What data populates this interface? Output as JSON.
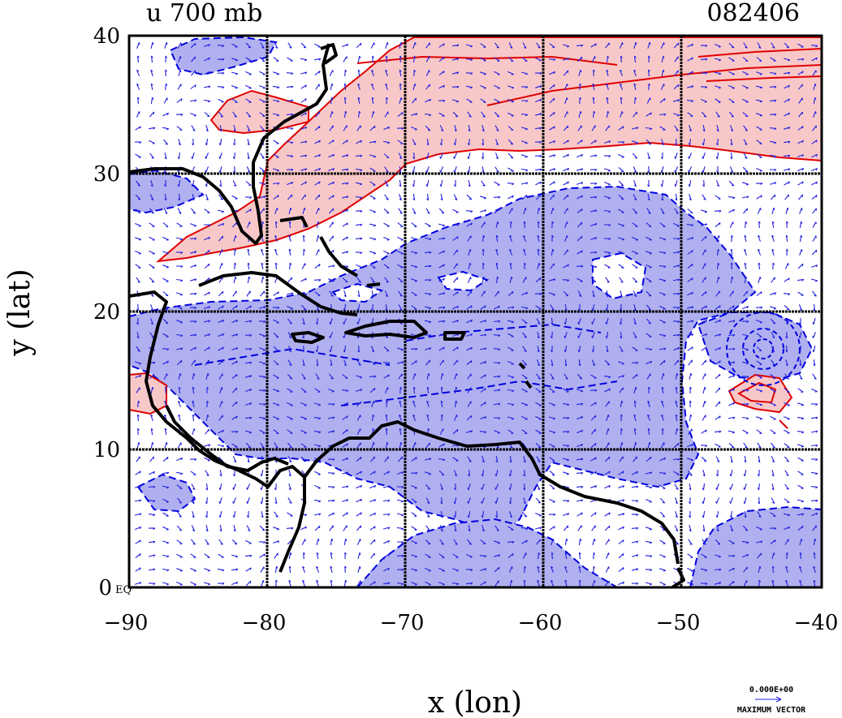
{
  "header": {
    "title": "u 700 mb",
    "date_code": "082406"
  },
  "axes": {
    "x_label": "x (lon)",
    "y_label": "y (lat)",
    "x_ticks": [
      "−90",
      "−80",
      "−70",
      "−60",
      "−50",
      "−40"
    ],
    "y_ticks": [
      "40",
      "30",
      "20",
      "10",
      "0"
    ],
    "equator_label": "EQ",
    "x_range": [
      -90,
      -40
    ],
    "y_range": [
      0,
      40
    ]
  },
  "legend": {
    "max_vector_value": "0.000E+00",
    "max_vector_label": "MAXIMUM VECTOR"
  },
  "colors": {
    "positive_fill": "#f8c8c8",
    "positive_line": "#e00000",
    "negative_fill": "#b0b0f0",
    "negative_line": "#0000e0",
    "coast": "#000000",
    "vectors": "#2020e0"
  }
}
